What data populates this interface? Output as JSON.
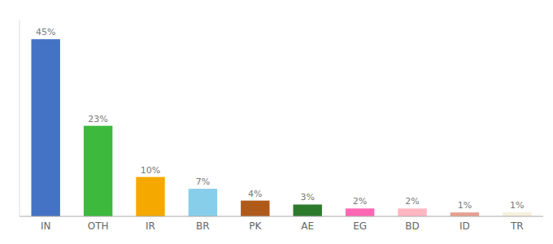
{
  "chart_data": {
    "type": "bar",
    "categories": [
      "IN",
      "OTH",
      "IR",
      "BR",
      "PK",
      "AE",
      "EG",
      "BD",
      "ID",
      "TR"
    ],
    "values": [
      45,
      23,
      10,
      7,
      4,
      3,
      2,
      2,
      1,
      1
    ],
    "value_labels": [
      "45%",
      "23%",
      "10%",
      "7%",
      "4%",
      "3%",
      "2%",
      "2%",
      "1%",
      "1%"
    ],
    "colors": [
      "#4472c4",
      "#3dba3d",
      "#f5a800",
      "#87ceeb",
      "#b05a1a",
      "#2d7a2d",
      "#ff69b4",
      "#ffb6c1",
      "#e8a090",
      "#f5f0dc"
    ],
    "ylim": [
      0,
      50
    ],
    "data_labels": true,
    "tick_labels": "x",
    "grid": false
  }
}
